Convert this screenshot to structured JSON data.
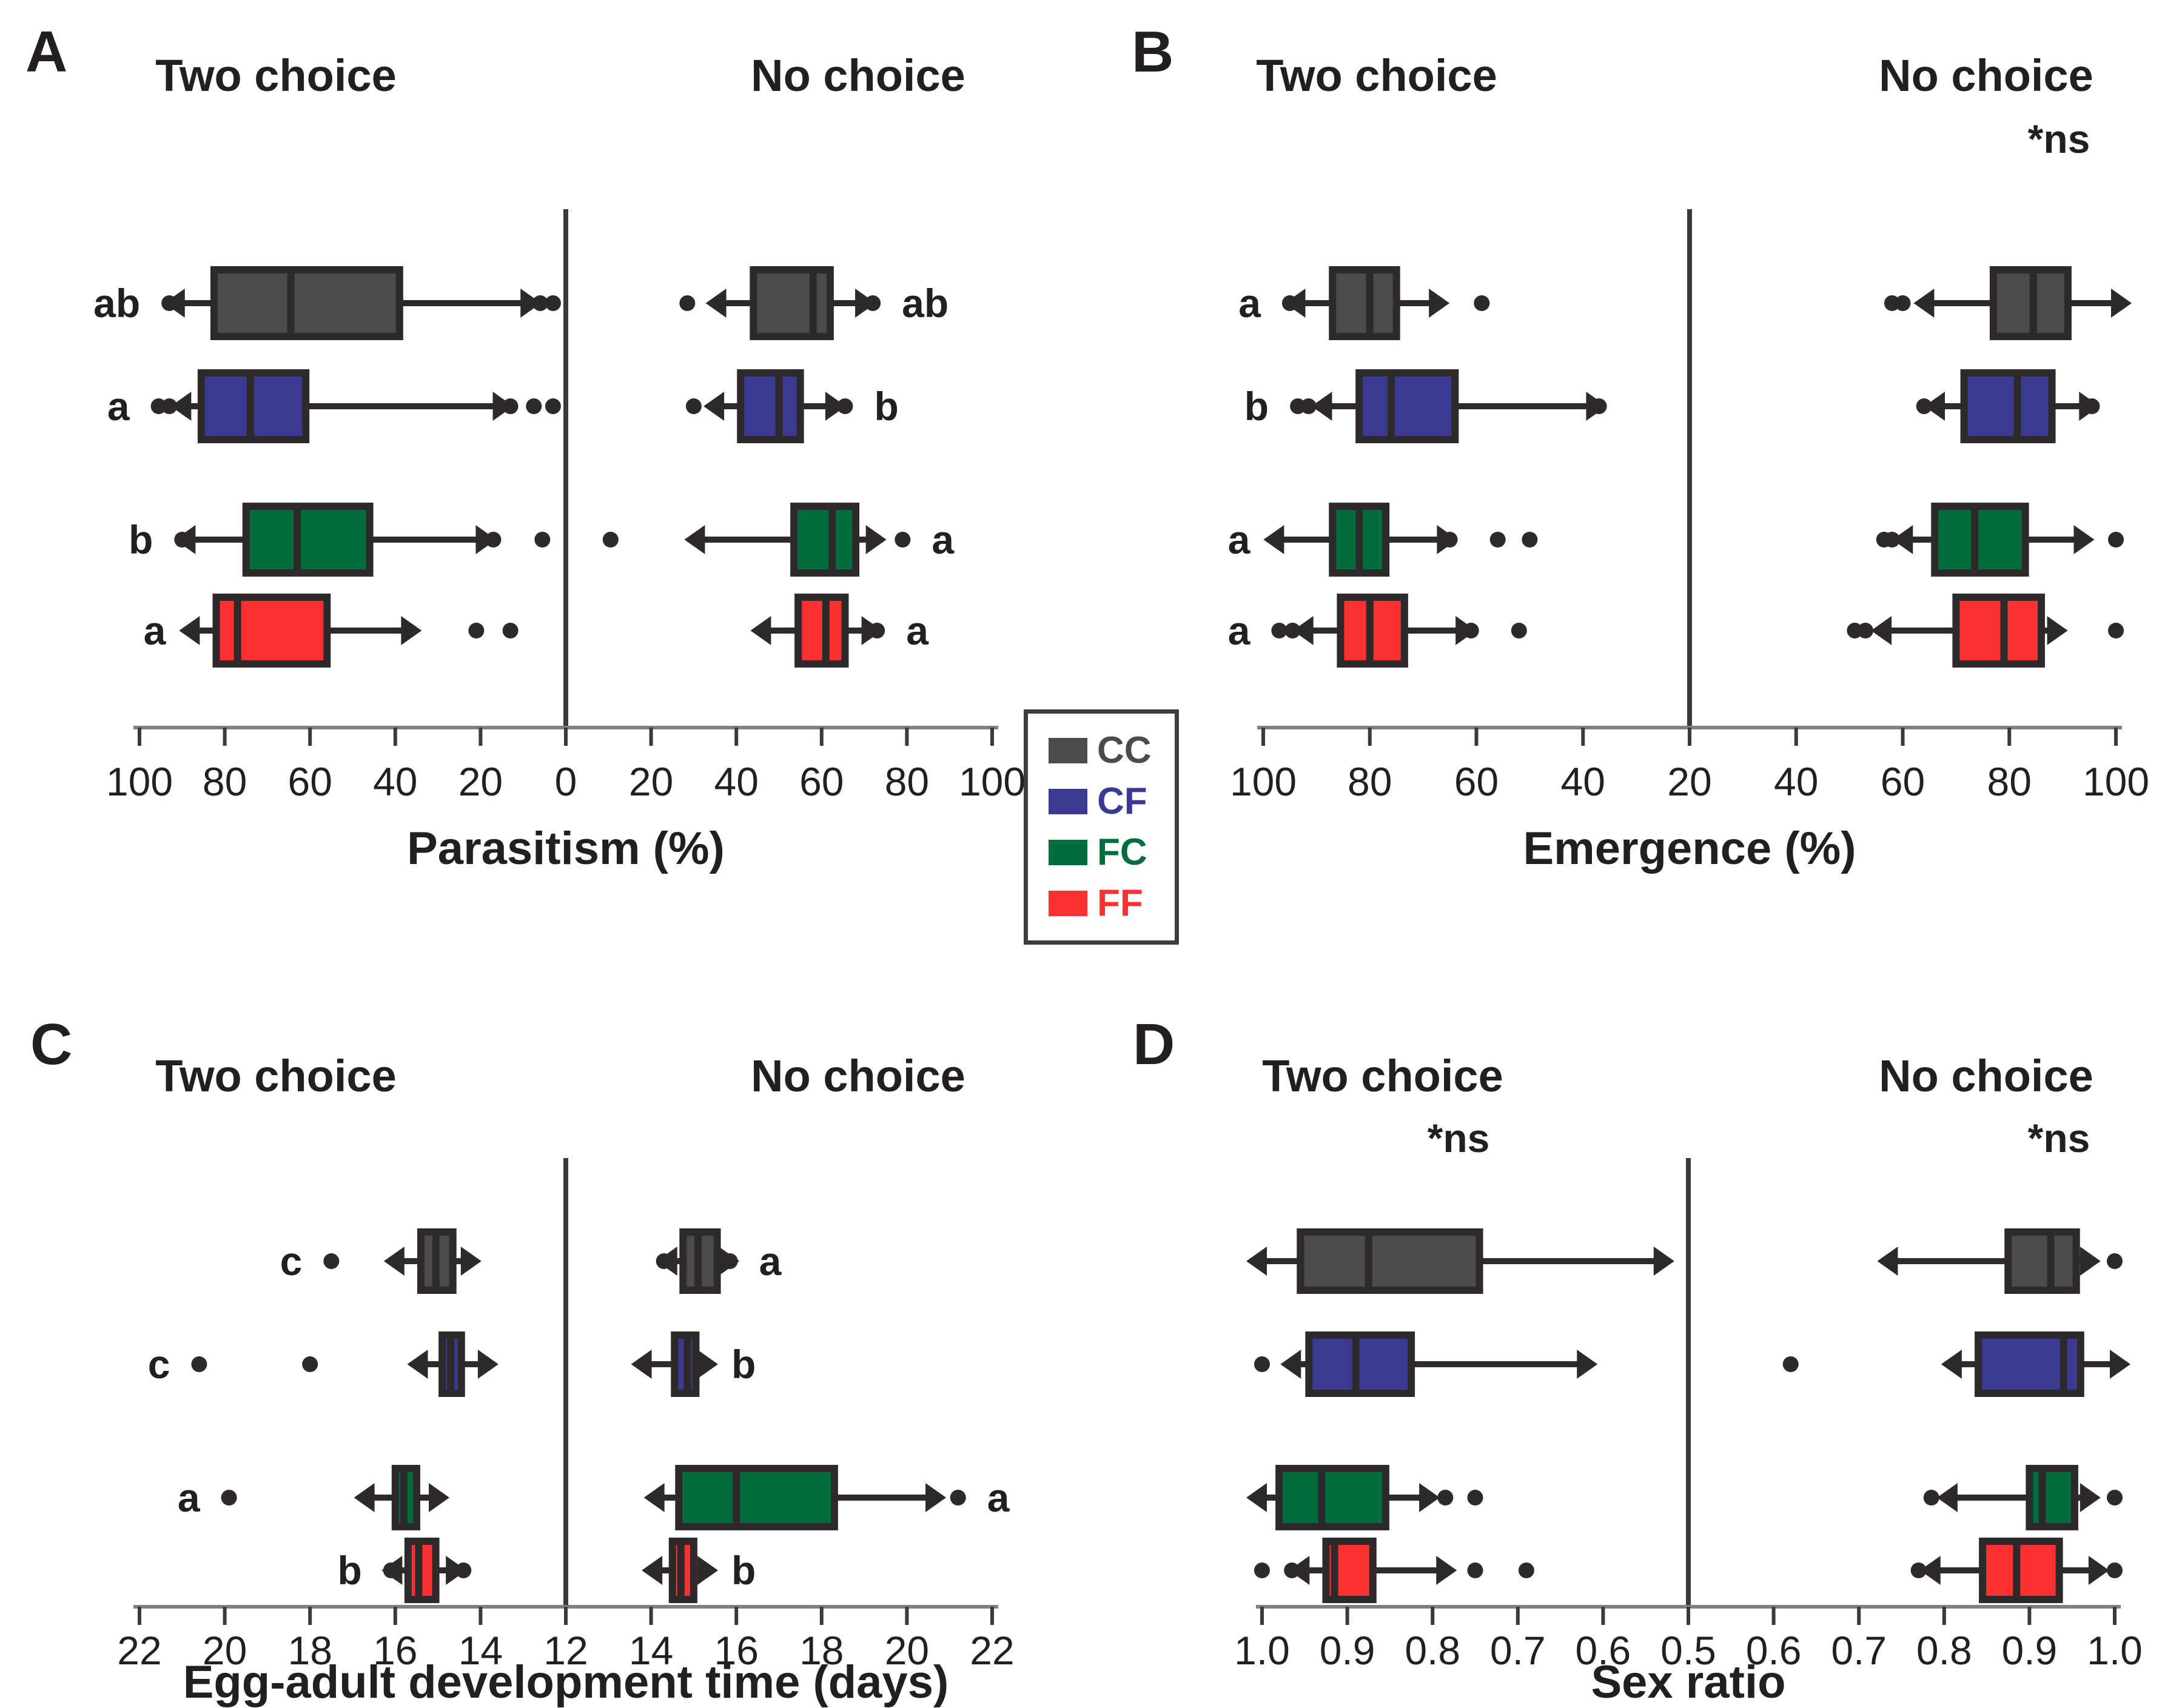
{
  "figure": {
    "background": "#ffffff",
    "description": "Four mirrored horizontal box-plot panels comparing Two choice vs No choice conditions for four host groups"
  },
  "colors": {
    "CC": "#4b4b4b",
    "CF": "#3a3a92",
    "FC": "#006e3c",
    "FF": "#fb3030",
    "box_stroke": "#2e2a2b",
    "text": "#231f20",
    "axis_line": "#808080",
    "tick": "#3a3a3a"
  },
  "legend": {
    "items": [
      {
        "id": "CC",
        "label": "CC"
      },
      {
        "id": "CF",
        "label": "CF"
      },
      {
        "id": "FC",
        "label": "FC"
      },
      {
        "id": "FF",
        "label": "FF"
      }
    ]
  },
  "chart_data": [
    {
      "id": "A",
      "type": "boxplot",
      "panel_label": "A",
      "xlabel": "Parasitism (%)",
      "axis": {
        "left_ticks": [
          "100",
          "80",
          "60",
          "40",
          "20"
        ],
        "center_tick": "0",
        "right_ticks": [
          "20",
          "40",
          "60",
          "80",
          "100"
        ]
      },
      "left": {
        "title": "Two choice",
        "annotation": null,
        "rows": [
          {
            "group": "CC",
            "letter": "ab",
            "whisker_low": 9.5,
            "q1": 39,
            "median": 64.5,
            "q3": 82.5,
            "whisker_high": 90.5,
            "outliers": [
              3,
              6,
              93
            ]
          },
          {
            "group": "CF",
            "letter": "a",
            "whisker_low": 16,
            "q1": 61,
            "median": 74,
            "q3": 85.5,
            "whisker_high": 89,
            "outliers": [
              3,
              7.5,
              13,
              93,
              95.5
            ]
          },
          {
            "group": "FC",
            "letter": "b",
            "whisker_low": 20,
            "q1": 46,
            "median": 63,
            "q3": 75,
            "whisker_high": 88,
            "outliers": [
              5.5,
              17,
              90
            ]
          },
          {
            "group": "FF",
            "letter": "a",
            "whisker_low": 37.5,
            "q1": 56,
            "median": 77,
            "q3": 82,
            "whisker_high": 87,
            "outliers": [
              13,
              21
            ]
          }
        ]
      },
      "right": {
        "title": "No choice",
        "annotation": null,
        "rows": [
          {
            "group": "CC",
            "letter": "ab",
            "whisker_low": 36.5,
            "q1": 44,
            "median": 58,
            "q3": 62,
            "whisker_high": 69,
            "outliers": [
              28.5,
              72
            ]
          },
          {
            "group": "CF",
            "letter": "b",
            "whisker_low": 36,
            "q1": 41,
            "median": 50,
            "q3": 55,
            "whisker_high": 62,
            "outliers": [
              30,
              65.5
            ]
          },
          {
            "group": "FC",
            "letter": "a",
            "whisker_low": 31.5,
            "q1": 53.5,
            "median": 62.5,
            "q3": 68,
            "whisker_high": 71.5,
            "outliers": [
              10.5,
              79
            ]
          },
          {
            "group": "FF",
            "letter": "a",
            "whisker_low": 47,
            "q1": 54.5,
            "median": 61,
            "q3": 65.5,
            "whisker_high": 70.5,
            "outliers": [
              73
            ]
          }
        ]
      }
    },
    {
      "id": "B",
      "type": "boxplot",
      "panel_label": "B",
      "xlabel": "Emergence (%)",
      "axis": {
        "left_ticks": [
          "100",
          "80",
          "60",
          "40"
        ],
        "center_tick": "20",
        "right_ticks": [
          "40",
          "60",
          "80",
          "100"
        ]
      },
      "left": {
        "title": "Two choice",
        "annotation": null,
        "rows": [
          {
            "group": "CC",
            "letter": "a",
            "whisker_low": 68,
            "q1": 75,
            "median": 80,
            "q3": 87,
            "whisker_high": 93,
            "outliers": [
              59,
              95
            ]
          },
          {
            "group": "CF",
            "letter": "b",
            "whisker_low": 38.5,
            "q1": 64,
            "median": 76,
            "q3": 82,
            "whisker_high": 88,
            "outliers": [
              37,
              91.5,
              93.5
            ]
          },
          {
            "group": "FC",
            "letter": "a",
            "whisker_low": 66.5,
            "q1": 77,
            "median": 82,
            "q3": 87,
            "whisker_high": 97,
            "outliers": [
              50,
              56,
              65
            ]
          },
          {
            "group": "FF",
            "letter": "a",
            "whisker_low": 63,
            "q1": 73.5,
            "median": 80,
            "q3": 85.5,
            "whisker_high": 91.5,
            "outliers": [
              52,
              61,
              94.5,
              97
            ]
          }
        ]
      },
      "right": {
        "title": "No choice",
        "annotation": "*ns",
        "rows": [
          {
            "group": "CC",
            "letter": null,
            "whisker_low": 65,
            "q1": 77,
            "median": 84.5,
            "q3": 91,
            "whisker_high": 100,
            "outliers": [
              58,
              60
            ]
          },
          {
            "group": "CF",
            "letter": null,
            "whisker_low": 67,
            "q1": 71.5,
            "median": 81.5,
            "q3": 88,
            "whisker_high": 94,
            "outliers": [
              64,
              95.5
            ]
          },
          {
            "group": "FC",
            "letter": null,
            "whisker_low": 61,
            "q1": 66,
            "median": 73.5,
            "q3": 83,
            "whisker_high": 93,
            "outliers": [
              56.5,
              58,
              100
            ]
          },
          {
            "group": "FF",
            "letter": null,
            "whisker_low": 57,
            "q1": 70,
            "median": 79,
            "q3": 86,
            "whisker_high": 88,
            "outliers": [
              51,
              53,
              100
            ]
          }
        ]
      }
    },
    {
      "id": "C",
      "type": "boxplot",
      "panel_label": "C",
      "xlabel": "Egg-adult development time (days)",
      "axis": {
        "left_ticks": [
          "22",
          "20",
          "18",
          "16",
          "14"
        ],
        "center_tick": "12",
        "right_ticks": [
          "14",
          "16",
          "18",
          "20",
          "22"
        ]
      },
      "left": {
        "title": "Two choice",
        "annotation": null,
        "rows": [
          {
            "group": "CC",
            "letter": "c",
            "whisker_low": 14.35,
            "q1": 14.65,
            "median": 15.05,
            "q3": 15.4,
            "whisker_high": 15.9,
            "outliers": [
              17.5
            ]
          },
          {
            "group": "CF",
            "letter": "c",
            "whisker_low": 13.95,
            "q1": 14.45,
            "median": 14.7,
            "q3": 14.9,
            "whisker_high": 15.35,
            "outliers": [
              18,
              20.6
            ]
          },
          {
            "group": "FC",
            "letter": "a",
            "whisker_low": 15.1,
            "q1": 15.5,
            "median": 15.8,
            "q3": 16,
            "whisker_high": 16.6,
            "outliers": [
              19.9
            ]
          },
          {
            "group": "FF",
            "letter": "b",
            "whisker_low": 14.7,
            "q1": 15.05,
            "median": 15.45,
            "q3": 15.7,
            "whisker_high": 15.95,
            "outliers": [
              14.4,
              16.1
            ]
          }
        ]
      },
      "right": {
        "title": "No choice",
        "annotation": null,
        "rows": [
          {
            "group": "CC",
            "letter": "a",
            "whisker_low": 14.5,
            "q1": 14.75,
            "median": 15.1,
            "q3": 15.55,
            "whisker_high": 15.7,
            "outliers": [
              14.3,
              15.85
            ]
          },
          {
            "group": "CF",
            "letter": "b",
            "whisker_low": 13.9,
            "q1": 14.55,
            "median": 14.85,
            "q3": 15.05,
            "whisker_high": 15.2,
            "outliers": []
          },
          {
            "group": "FC",
            "letter": "a",
            "whisker_low": 14.2,
            "q1": 14.65,
            "median": 16,
            "q3": 18.3,
            "whisker_high": 20.55,
            "outliers": [
              21.2
            ]
          },
          {
            "group": "FF",
            "letter": "b",
            "whisker_low": 14.15,
            "q1": 14.5,
            "median": 14.7,
            "q3": 15,
            "whisker_high": 15.2,
            "outliers": []
          }
        ]
      }
    },
    {
      "id": "D",
      "type": "boxplot",
      "panel_label": "D",
      "xlabel": "Sex ratio",
      "axis": {
        "left_ticks": [
          "1.0",
          "0.9",
          "0.8",
          "0.7",
          "0.6"
        ],
        "center_tick": "0.5",
        "right_ticks": [
          "0.6",
          "0.7",
          "0.8",
          "0.9",
          "1.0"
        ]
      },
      "left": {
        "title": "Two choice",
        "annotation": "*ns",
        "rows": [
          {
            "group": "CC",
            "letter": null,
            "whisker_low": 0.535,
            "q1": 0.745,
            "median": 0.875,
            "q3": 0.955,
            "whisker_high": 1.0,
            "outliers": []
          },
          {
            "group": "CF",
            "letter": null,
            "whisker_low": 0.625,
            "q1": 0.825,
            "median": 0.89,
            "q3": 0.945,
            "whisker_high": 0.96,
            "outliers": [
              1.0
            ]
          },
          {
            "group": "FC",
            "letter": null,
            "whisker_low": 0.81,
            "q1": 0.855,
            "median": 0.93,
            "q3": 0.98,
            "whisker_high": 1.0,
            "outliers": [
              0.785,
              0.75
            ]
          },
          {
            "group": "FF",
            "letter": null,
            "whisker_low": 0.79,
            "q1": 0.87,
            "median": 0.915,
            "q3": 0.925,
            "whisker_high": 0.95,
            "outliers": [
              1.0,
              0.965,
              0.75,
              0.69
            ]
          }
        ]
      },
      "right": {
        "title": "No choice",
        "annotation": "*ns",
        "rows": [
          {
            "group": "CC",
            "letter": null,
            "whisker_low": 0.74,
            "q1": 0.875,
            "median": 0.925,
            "q3": 0.955,
            "whisker_high": 0.965,
            "outliers": [
              1.0
            ]
          },
          {
            "group": "CF",
            "letter": null,
            "whisker_low": 0.815,
            "q1": 0.84,
            "median": 0.94,
            "q3": 0.96,
            "whisker_high": 1.0,
            "outliers": [
              0.62
            ]
          },
          {
            "group": "FC",
            "letter": null,
            "whisker_low": 0.81,
            "q1": 0.9,
            "median": 0.915,
            "q3": 0.953,
            "whisker_high": 0.965,
            "outliers": [
              0.785,
              1.0
            ]
          },
          {
            "group": "FF",
            "letter": null,
            "whisker_low": 0.79,
            "q1": 0.845,
            "median": 0.885,
            "q3": 0.935,
            "whisker_high": 0.975,
            "outliers": [
              0.77,
              1.0
            ]
          }
        ]
      }
    }
  ]
}
